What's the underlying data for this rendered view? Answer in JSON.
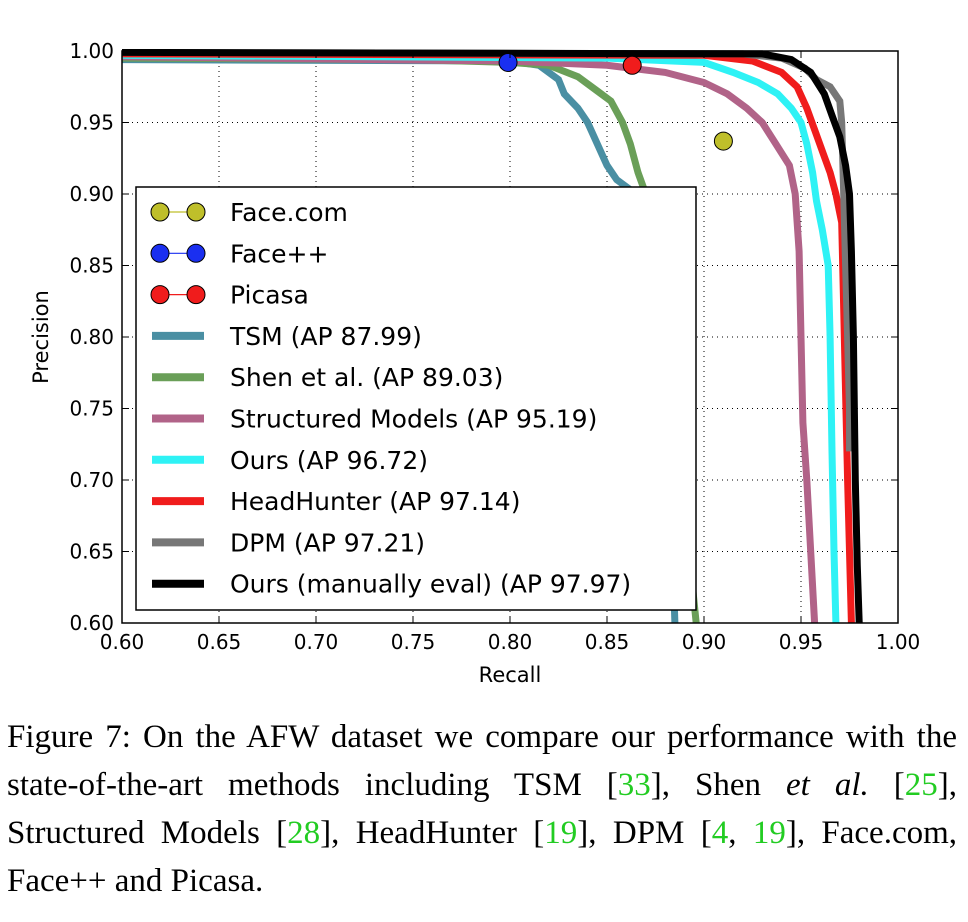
{
  "chart_data": {
    "type": "line",
    "xlabel": "Recall",
    "ylabel": "Precision",
    "xlim": [
      0.6,
      1.0
    ],
    "ylim": [
      0.6,
      1.0
    ],
    "xticks": [
      "0.60",
      "0.65",
      "0.70",
      "0.75",
      "0.80",
      "0.85",
      "0.90",
      "0.95",
      "1.00"
    ],
    "yticks": [
      "0.60",
      "0.65",
      "0.70",
      "0.75",
      "0.80",
      "0.85",
      "0.90",
      "0.95",
      "1.00"
    ],
    "grid": true,
    "legend_position": "lower-left",
    "series": [
      {
        "name": "Face.com",
        "kind": "point",
        "color": "#bfbf2a",
        "points": [
          [
            0.91,
            0.937
          ]
        ]
      },
      {
        "name": "Face++",
        "kind": "point",
        "color": "#1a2ff0",
        "points": [
          [
            0.799,
            0.992
          ]
        ]
      },
      {
        "name": "Picasa",
        "kind": "point",
        "color": "#f01c1c",
        "points": [
          [
            0.863,
            0.99
          ]
        ]
      },
      {
        "name": "TSM (AP 87.99)",
        "kind": "line",
        "color": "#4a8fa3",
        "points": [
          [
            0.6,
            0.994
          ],
          [
            0.8,
            0.993
          ],
          [
            0.815,
            0.99
          ],
          [
            0.825,
            0.98
          ],
          [
            0.828,
            0.97
          ],
          [
            0.835,
            0.96
          ],
          [
            0.84,
            0.95
          ],
          [
            0.845,
            0.935
          ],
          [
            0.85,
            0.92
          ],
          [
            0.855,
            0.91
          ],
          [
            0.865,
            0.9
          ],
          [
            0.868,
            0.87
          ],
          [
            0.872,
            0.83
          ],
          [
            0.875,
            0.8
          ],
          [
            0.878,
            0.76
          ],
          [
            0.88,
            0.72
          ],
          [
            0.882,
            0.68
          ],
          [
            0.884,
            0.64
          ],
          [
            0.885,
            0.6
          ]
        ]
      },
      {
        "name": "Shen et al. (AP 89.03)",
        "kind": "line",
        "color": "#6a9f58",
        "points": [
          [
            0.6,
            0.995
          ],
          [
            0.75,
            0.994
          ],
          [
            0.8,
            0.992
          ],
          [
            0.82,
            0.99
          ],
          [
            0.835,
            0.982
          ],
          [
            0.845,
            0.972
          ],
          [
            0.852,
            0.965
          ],
          [
            0.858,
            0.95
          ],
          [
            0.862,
            0.935
          ],
          [
            0.866,
            0.915
          ],
          [
            0.87,
            0.9
          ],
          [
            0.875,
            0.86
          ],
          [
            0.88,
            0.8
          ],
          [
            0.883,
            0.76
          ],
          [
            0.887,
            0.72
          ],
          [
            0.89,
            0.68
          ],
          [
            0.893,
            0.64
          ],
          [
            0.896,
            0.6
          ]
        ]
      },
      {
        "name": "Structured Models (AP 95.19)",
        "kind": "line",
        "color": "#b16388",
        "points": [
          [
            0.6,
            0.996
          ],
          [
            0.8,
            0.993
          ],
          [
            0.85,
            0.99
          ],
          [
            0.88,
            0.985
          ],
          [
            0.9,
            0.978
          ],
          [
            0.912,
            0.97
          ],
          [
            0.922,
            0.96
          ],
          [
            0.93,
            0.95
          ],
          [
            0.937,
            0.935
          ],
          [
            0.944,
            0.92
          ],
          [
            0.947,
            0.9
          ],
          [
            0.949,
            0.86
          ],
          [
            0.95,
            0.8
          ],
          [
            0.951,
            0.74
          ],
          [
            0.953,
            0.7
          ],
          [
            0.955,
            0.65
          ],
          [
            0.957,
            0.6
          ]
        ]
      },
      {
        "name": "Ours (AP 96.72)",
        "kind": "line",
        "color": "#2ef2f5",
        "points": [
          [
            0.6,
            0.997
          ],
          [
            0.85,
            0.995
          ],
          [
            0.9,
            0.992
          ],
          [
            0.915,
            0.985
          ],
          [
            0.928,
            0.978
          ],
          [
            0.938,
            0.97
          ],
          [
            0.945,
            0.96
          ],
          [
            0.95,
            0.95
          ],
          [
            0.953,
            0.935
          ],
          [
            0.956,
            0.915
          ],
          [
            0.958,
            0.895
          ],
          [
            0.961,
            0.875
          ],
          [
            0.964,
            0.85
          ],
          [
            0.965,
            0.8
          ],
          [
            0.966,
            0.72
          ],
          [
            0.967,
            0.65
          ],
          [
            0.968,
            0.6
          ]
        ]
      },
      {
        "name": "HeadHunter (AP 97.14)",
        "kind": "line",
        "color": "#f01c1c",
        "points": [
          [
            0.6,
            0.998
          ],
          [
            0.9,
            0.997
          ],
          [
            0.925,
            0.993
          ],
          [
            0.94,
            0.985
          ],
          [
            0.948,
            0.975
          ],
          [
            0.953,
            0.96
          ],
          [
            0.957,
            0.945
          ],
          [
            0.961,
            0.93
          ],
          [
            0.965,
            0.915
          ],
          [
            0.968,
            0.9
          ],
          [
            0.971,
            0.88
          ],
          [
            0.972,
            0.82
          ],
          [
            0.973,
            0.76
          ],
          [
            0.974,
            0.7
          ],
          [
            0.975,
            0.65
          ],
          [
            0.976,
            0.6
          ]
        ]
      },
      {
        "name": "DPM (AP 97.21)",
        "kind": "line",
        "color": "#777777",
        "points": [
          [
            0.6,
            0.999
          ],
          [
            0.92,
            0.998
          ],
          [
            0.94,
            0.995
          ],
          [
            0.952,
            0.988
          ],
          [
            0.958,
            0.98
          ],
          [
            0.965,
            0.975
          ],
          [
            0.97,
            0.965
          ],
          [
            0.971,
            0.95
          ],
          [
            0.972,
            0.9
          ],
          [
            0.973,
            0.85
          ],
          [
            0.974,
            0.8
          ],
          [
            0.975,
            0.75
          ],
          [
            0.975,
            0.72
          ]
        ]
      },
      {
        "name": "Ours (manually eval) (AP 97.97)",
        "kind": "line",
        "color": "#000000",
        "points": [
          [
            0.6,
            0.999
          ],
          [
            0.93,
            0.998
          ],
          [
            0.945,
            0.994
          ],
          [
            0.955,
            0.985
          ],
          [
            0.962,
            0.97
          ],
          [
            0.966,
            0.955
          ],
          [
            0.97,
            0.94
          ],
          [
            0.973,
            0.92
          ],
          [
            0.975,
            0.9
          ],
          [
            0.976,
            0.86
          ],
          [
            0.977,
            0.8
          ],
          [
            0.978,
            0.7
          ],
          [
            0.979,
            0.64
          ],
          [
            0.98,
            0.6
          ]
        ]
      }
    ]
  },
  "caption": {
    "prefix": "Figure 7: On the AFW dataset we compare our performance with the state-of-the-art methods including TSM [",
    "ref_tsm": "33",
    "after_tsm": "], Shen ",
    "etal": "et al.",
    "before_shen": " [",
    "ref_shen": "25",
    "after_shen": "], Structured Models [",
    "ref_sm": "28",
    "after_sm": "], HeadHunter [",
    "ref_hh": "19",
    "after_hh": "], DPM [",
    "ref_dpm1": "4",
    "comma": ", ",
    "ref_dpm2": "19",
    "suffix": "], Face.com, Face++ and Picasa."
  }
}
